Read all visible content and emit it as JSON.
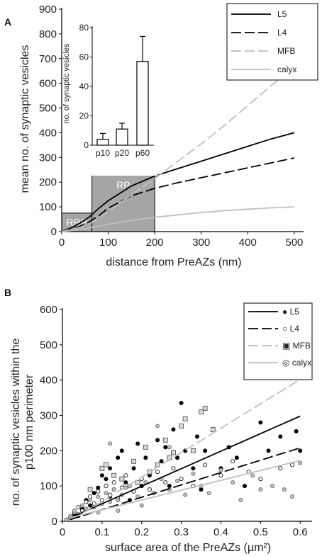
{
  "chart_data": [
    {
      "panel": "A",
      "type": "line",
      "xlabel": "distance from PreAZs (nm)",
      "ylabel": "mean no. of synaptic vesicles",
      "xlim": [
        0,
        520
      ],
      "ylim": [
        0,
        900
      ],
      "xticks": [
        0,
        100,
        200,
        300,
        400,
        500
      ],
      "yticks": [
        0,
        100,
        200,
        300,
        400,
        500,
        600,
        700,
        800,
        900
      ],
      "legend_position": "top-right",
      "series": [
        {
          "name": "L5",
          "color": "#000000",
          "dash": "solid",
          "points": [
            [
              0,
              0
            ],
            [
              20,
              15
            ],
            [
              40,
              35
            ],
            [
              60,
              60
            ],
            [
              80,
              95
            ],
            [
              100,
              125
            ],
            [
              150,
              185
            ],
            [
              200,
              225
            ],
            [
              250,
              255
            ],
            [
              300,
              285
            ],
            [
              350,
              315
            ],
            [
              400,
              345
            ],
            [
              450,
              375
            ],
            [
              500,
              400
            ]
          ]
        },
        {
          "name": "L4",
          "color": "#000000",
          "dash": "long",
          "points": [
            [
              0,
              0
            ],
            [
              20,
              10
            ],
            [
              40,
              22
            ],
            [
              60,
              40
            ],
            [
              80,
              65
            ],
            [
              100,
              95
            ],
            [
              150,
              145
            ],
            [
              200,
              175
            ],
            [
              250,
              198
            ],
            [
              300,
              218
            ],
            [
              350,
              238
            ],
            [
              400,
              258
            ],
            [
              450,
              278
            ],
            [
              500,
              298
            ]
          ]
        },
        {
          "name": "MFB",
          "color": "#bfbfbf",
          "dash": "long",
          "points": [
            [
              0,
              0
            ],
            [
              20,
              8
            ],
            [
              40,
              18
            ],
            [
              60,
              32
            ],
            [
              80,
              52
            ],
            [
              100,
              80
            ],
            [
              150,
              150
            ],
            [
              200,
              215
            ],
            [
              250,
              285
            ],
            [
              300,
              355
            ],
            [
              350,
              430
            ],
            [
              400,
              510
            ],
            [
              450,
              590
            ],
            [
              500,
              670
            ]
          ]
        },
        {
          "name": "calyx",
          "color": "#bfbfbf",
          "dash": "solid",
          "points": [
            [
              0,
              0
            ],
            [
              20,
              4
            ],
            [
              40,
              10
            ],
            [
              60,
              15
            ],
            [
              80,
              22
            ],
            [
              100,
              30
            ],
            [
              150,
              45
            ],
            [
              200,
              58
            ],
            [
              250,
              68
            ],
            [
              300,
              77
            ],
            [
              350,
              85
            ],
            [
              400,
              91
            ],
            [
              450,
              96
            ],
            [
              500,
              100
            ]
          ]
        }
      ],
      "regions": [
        {
          "label": "RRP",
          "x": [
            0,
            65
          ],
          "y": [
            0,
            75
          ]
        },
        {
          "label": "RP",
          "x": [
            65,
            200
          ],
          "y": [
            0,
            235
          ]
        }
      ],
      "inset": {
        "type": "bar",
        "ylabel": "no. of synaptic vesicles",
        "categories": [
          "p10",
          "p20",
          "p60"
        ],
        "values": [
          4,
          11,
          57
        ],
        "errors": [
          4,
          4,
          17
        ],
        "ylim": [
          0,
          80
        ],
        "yticks": [
          0,
          20,
          40,
          60,
          80
        ]
      }
    },
    {
      "panel": "B",
      "type": "scatter",
      "xlabel": "surface area of the PreAZs (µm²)",
      "ylabel_line1": "no. of synaptic vesicles within the",
      "ylabel_line2": "p100 nm perimeter",
      "xlim": [
        0,
        0.63
      ],
      "ylim": [
        0,
        600
      ],
      "xticks": [
        0,
        0.1,
        0.2,
        0.3,
        0.4,
        0.5,
        0.6
      ],
      "xtick_labels": [
        "0",
        "0.1",
        "0.2",
        "0.3",
        "0.4",
        "0.5",
        "0.6"
      ],
      "yticks": [
        0,
        100,
        200,
        300,
        400,
        500,
        600
      ],
      "legend_position": "top-right",
      "fits": [
        {
          "name": "L5",
          "marker": "●",
          "color": "#000000",
          "dash": "solid",
          "points": [
            [
              0.02,
              10
            ],
            [
              0.6,
              298
            ]
          ]
        },
        {
          "name": "L4",
          "marker": "○",
          "color": "#000000",
          "dash": "long",
          "points": [
            [
              0.02,
              5
            ],
            [
              0.6,
              208
            ]
          ]
        },
        {
          "name": "MFB",
          "marker": "▣",
          "color": "#bfbfbf",
          "dash": "long",
          "points": [
            [
              0.05,
              22
            ],
            [
              0.6,
              402
            ]
          ]
        },
        {
          "name": "calyx",
          "marker": "◎",
          "color": "#bfbfbf",
          "dash": "solid",
          "points": [
            [
              0.02,
              10
            ],
            [
              0.6,
              172
            ]
          ]
        }
      ],
      "scatter": [
        {
          "name": "L5",
          "fill": "#000000",
          "stroke": "#000000",
          "shape": "circle",
          "points": [
            [
              0.03,
              20
            ],
            [
              0.05,
              35
            ],
            [
              0.06,
              60
            ],
            [
              0.08,
              80
            ],
            [
              0.09,
              95
            ],
            [
              0.1,
              130
            ],
            [
              0.11,
              120
            ],
            [
              0.12,
              150
            ],
            [
              0.13,
              90
            ],
            [
              0.14,
              180
            ],
            [
              0.15,
              200
            ],
            [
              0.16,
              110
            ],
            [
              0.18,
              150
            ],
            [
              0.19,
              220
            ],
            [
              0.21,
              180
            ],
            [
              0.22,
              130
            ],
            [
              0.24,
              230
            ],
            [
              0.25,
              170
            ],
            [
              0.26,
              210
            ],
            [
              0.27,
              100
            ],
            [
              0.28,
              260
            ],
            [
              0.29,
              180
            ],
            [
              0.3,
              335
            ],
            [
              0.31,
              200
            ],
            [
              0.33,
              150
            ],
            [
              0.34,
              240
            ],
            [
              0.36,
              200
            ],
            [
              0.38,
              260
            ],
            [
              0.4,
              150
            ],
            [
              0.42,
              210
            ],
            [
              0.44,
              180
            ],
            [
              0.46,
              100
            ],
            [
              0.5,
              280
            ],
            [
              0.52,
              200
            ],
            [
              0.55,
              240
            ],
            [
              0.59,
              255
            ],
            [
              0.6,
              200
            ],
            [
              0.07,
              45
            ],
            [
              0.04,
              15
            ],
            [
              0.12,
              70
            ],
            [
              0.17,
              60
            ],
            [
              0.2,
              100
            ],
            [
              0.23,
              80
            ],
            [
              0.35,
              90
            ]
          ]
        },
        {
          "name": "L4",
          "fill": "#ffffff",
          "stroke": "#000000",
          "shape": "circle",
          "points": [
            [
              0.02,
              10
            ],
            [
              0.03,
              25
            ],
            [
              0.04,
              40
            ],
            [
              0.05,
              30
            ],
            [
              0.06,
              55
            ],
            [
              0.07,
              70
            ],
            [
              0.08,
              50
            ],
            [
              0.09,
              85
            ],
            [
              0.1,
              60
            ],
            [
              0.11,
              100
            ],
            [
              0.12,
              75
            ],
            [
              0.13,
              110
            ],
            [
              0.14,
              65
            ],
            [
              0.15,
              95
            ],
            [
              0.16,
              130
            ],
            [
              0.18,
              85
            ],
            [
              0.2,
              120
            ],
            [
              0.22,
              90
            ],
            [
              0.24,
              140
            ],
            [
              0.26,
              110
            ],
            [
              0.28,
              150
            ],
            [
              0.3,
              120
            ],
            [
              0.33,
              100
            ],
            [
              0.36,
              160
            ],
            [
              0.4,
              130
            ],
            [
              0.43,
              170
            ],
            [
              0.47,
              140
            ],
            [
              0.5,
              120
            ],
            [
              0.55,
              150
            ],
            [
              0.58,
              160
            ]
          ]
        },
        {
          "name": "MFB",
          "fill": "#d9d9d9",
          "stroke": "#555555",
          "shape": "square",
          "points": [
            [
              0.07,
              90
            ],
            [
              0.1,
              150
            ],
            [
              0.11,
              160
            ],
            [
              0.13,
              130
            ],
            [
              0.15,
              120
            ],
            [
              0.18,
              170
            ],
            [
              0.21,
              210
            ],
            [
              0.24,
              160
            ],
            [
              0.26,
              230
            ],
            [
              0.28,
              195
            ],
            [
              0.3,
              270
            ],
            [
              0.33,
              200
            ],
            [
              0.35,
              310
            ],
            [
              0.36,
              320
            ],
            [
              0.38,
              260
            ],
            [
              0.31,
              290
            ],
            [
              0.27,
              180
            ],
            [
              0.22,
              140
            ],
            [
              0.19,
              110
            ],
            [
              0.16,
              100
            ]
          ]
        },
        {
          "name": "calyx",
          "fill": "#bfbfbf",
          "stroke": "#666666",
          "shape": "circle",
          "points": [
            [
              0.01,
              5
            ],
            [
              0.02,
              15
            ],
            [
              0.03,
              30
            ],
            [
              0.04,
              20
            ],
            [
              0.05,
              45
            ],
            [
              0.06,
              35
            ],
            [
              0.07,
              60
            ],
            [
              0.08,
              40
            ],
            [
              0.09,
              70
            ],
            [
              0.1,
              50
            ],
            [
              0.11,
              80
            ],
            [
              0.12,
              55
            ],
            [
              0.13,
              90
            ],
            [
              0.14,
              60
            ],
            [
              0.15,
              75
            ],
            [
              0.16,
              95
            ],
            [
              0.17,
              100
            ],
            [
              0.19,
              70
            ],
            [
              0.21,
              110
            ],
            [
              0.23,
              80
            ],
            [
              0.25,
              120
            ],
            [
              0.27,
              90
            ],
            [
              0.29,
              115
            ],
            [
              0.31,
              75
            ],
            [
              0.33,
              135
            ],
            [
              0.35,
              100
            ],
            [
              0.37,
              80
            ],
            [
              0.4,
              145
            ],
            [
              0.43,
              110
            ],
            [
              0.45,
              60
            ],
            [
              0.48,
              130
            ],
            [
              0.5,
              90
            ],
            [
              0.53,
              100
            ],
            [
              0.56,
              90
            ],
            [
              0.58,
              70
            ],
            [
              0.6,
              165
            ],
            [
              0.09,
              25
            ],
            [
              0.14,
              30
            ],
            [
              0.2,
              45
            ],
            [
              0.12,
              220
            ],
            [
              0.24,
              270
            ],
            [
              0.27,
              210
            ]
          ]
        }
      ]
    }
  ]
}
